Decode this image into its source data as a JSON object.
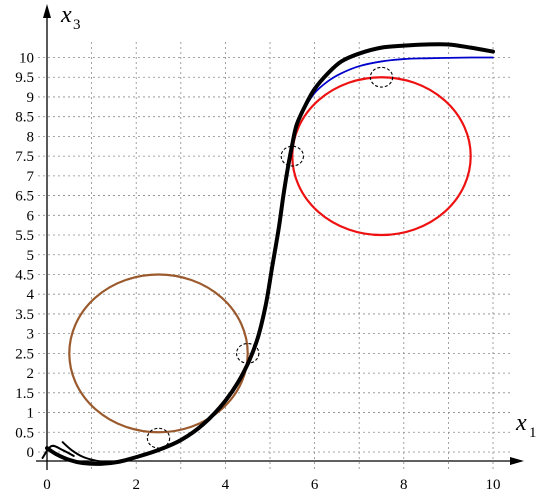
{
  "chart_data": {
    "type": "line",
    "xaxis": {
      "label": "x",
      "subscript": "1",
      "ticks": [
        0,
        2,
        4,
        6,
        8,
        10
      ],
      "range": [
        -0.2,
        10.6
      ]
    },
    "yaxis": {
      "label": "x",
      "subscript": "3",
      "ticks": [
        0,
        0.5,
        1,
        1.5,
        2,
        2.5,
        3,
        3.5,
        4,
        4.5,
        5,
        5.5,
        6,
        6.5,
        7,
        7.5,
        8,
        8.5,
        9,
        9.5,
        10
      ],
      "tick_labels": [
        "0",
        "0.5",
        "1",
        "1.5",
        "2",
        "2.5",
        "3",
        "3.5",
        "4",
        "4.5",
        "5",
        "5.5",
        "6",
        "6.5",
        "7",
        "7.5",
        "8",
        "8.5",
        "9",
        "9.5",
        "10"
      ],
      "range": [
        -0.4,
        10.9
      ]
    },
    "grid": true,
    "grid_x": [
      1,
      2,
      3,
      4,
      5,
      6,
      7,
      8,
      9,
      10
    ],
    "series": [
      {
        "color": "#0000cc",
        "width": 1.8,
        "x": [
          5.5,
          5.6,
          5.8,
          6.0,
          6.3,
          6.6,
          7.0,
          7.5,
          8.0,
          8.5,
          9.0,
          9.5,
          10.0
        ],
        "y": [
          7.8,
          8.25,
          8.75,
          9.1,
          9.4,
          9.6,
          9.78,
          9.9,
          9.96,
          9.98,
          9.99,
          10.0,
          10.0
        ]
      },
      {
        "color": "#000000",
        "width": 4,
        "x": [
          0.0,
          0.2,
          0.5,
          0.8,
          1.2,
          1.6,
          2.0,
          2.5,
          3.0,
          3.5,
          4.0,
          4.4,
          4.7,
          4.9,
          5.05,
          5.2,
          5.3,
          5.4,
          5.5,
          5.6,
          5.8,
          6.0,
          6.3,
          6.6,
          7.0,
          7.5,
          8.0,
          8.5,
          9.0,
          9.5,
          10.0
        ],
        "y": [
          0.1,
          -0.05,
          -0.2,
          -0.28,
          -0.3,
          -0.25,
          -0.13,
          0.05,
          0.3,
          0.7,
          1.3,
          2.0,
          2.8,
          3.7,
          4.7,
          5.7,
          6.5,
          7.2,
          7.8,
          8.3,
          8.8,
          9.2,
          9.6,
          9.9,
          10.1,
          10.25,
          10.3,
          10.33,
          10.33,
          10.25,
          10.15
        ]
      },
      {
        "color": "#000000",
        "width": 2,
        "x": [
          0.35,
          0.55,
          0.8,
          1.1,
          1.4
        ],
        "y": [
          0.25,
          0.05,
          -0.12,
          -0.22,
          -0.27
        ]
      },
      {
        "color": "#000000",
        "width": 2,
        "x": [
          -0.1,
          0.1,
          0.35,
          0.6
        ],
        "y": [
          -0.15,
          0.15,
          0.05,
          -0.1
        ]
      }
    ],
    "circles": [
      {
        "cx": 2.5,
        "cy": 2.5,
        "r": 2.0,
        "color": "#9b5a2d",
        "width": 2.2,
        "dashed": false
      },
      {
        "cx": 7.5,
        "cy": 7.5,
        "r": 2.0,
        "color": "#ee1111",
        "width": 2.2,
        "dashed": false
      },
      {
        "cx": 2.5,
        "cy": 0.35,
        "r": 0.25,
        "color": "#000000",
        "width": 1.1,
        "dashed": true
      },
      {
        "cx": 4.5,
        "cy": 2.5,
        "r": 0.25,
        "color": "#000000",
        "width": 1.1,
        "dashed": true
      },
      {
        "cx": 5.5,
        "cy": 7.5,
        "r": 0.25,
        "color": "#000000",
        "width": 1.1,
        "dashed": true
      },
      {
        "cx": 7.5,
        "cy": 9.5,
        "r": 0.25,
        "color": "#000000",
        "width": 1.1,
        "dashed": true
      }
    ]
  }
}
